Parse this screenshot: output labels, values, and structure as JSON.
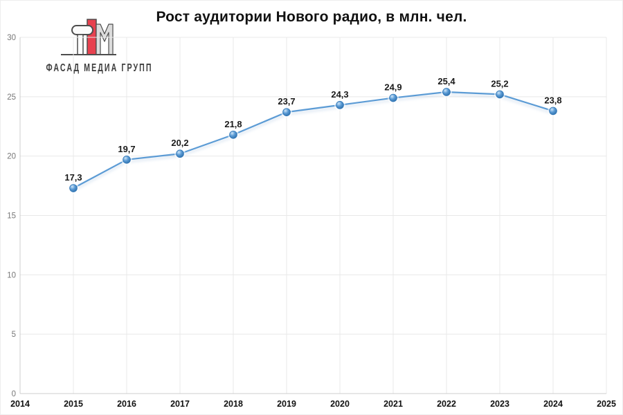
{
  "header": {
    "title": "Рост аудитории Нового радио, в млн. чел."
  },
  "logo": {
    "text": "ФАСАД МЕДИА ГРУПП",
    "colors": {
      "red": "#e8414f",
      "gray": "#dcdcdc",
      "light": "#fbfbfb",
      "outline": "#4d4d4d",
      "text": "#3d3d3d"
    }
  },
  "chart_data": {
    "type": "line",
    "title": "Рост аудитории Нового радио, в млн. чел.",
    "x": [
      2015,
      2016,
      2017,
      2018,
      2019,
      2020,
      2021,
      2022,
      2023,
      2024
    ],
    "values": [
      17.3,
      19.7,
      20.2,
      21.8,
      23.7,
      24.3,
      24.9,
      25.4,
      25.2,
      23.8
    ],
    "point_labels": [
      "17,3",
      "19,7",
      "20,2",
      "21,8",
      "23,7",
      "24,3",
      "24,9",
      "25,4",
      "25,2",
      "23,8"
    ],
    "x_ticks": [
      "2014",
      "2015",
      "2016",
      "2017",
      "2018",
      "2019",
      "2020",
      "2021",
      "2022",
      "2023",
      "2024",
      "2025"
    ],
    "y_ticks": [
      "0",
      "5",
      "10",
      "15",
      "20",
      "25",
      "30"
    ],
    "xlim": [
      2014,
      2025
    ],
    "ylim": [
      0,
      30
    ],
    "grid": "on",
    "legend": "none",
    "colors": {
      "line": "#5b9bd5",
      "marker_highlight": "#cfe6f8",
      "marker_mid": "#5b9bd5",
      "marker_dark": "#2a6ca8",
      "marker_stroke": "#2e75b6",
      "gridline": "#e8e8e8",
      "axis": "#cccccc",
      "y_tick_label": "#777777",
      "x_tick_label": "#111111",
      "data_label": "#1a1a1a"
    }
  }
}
